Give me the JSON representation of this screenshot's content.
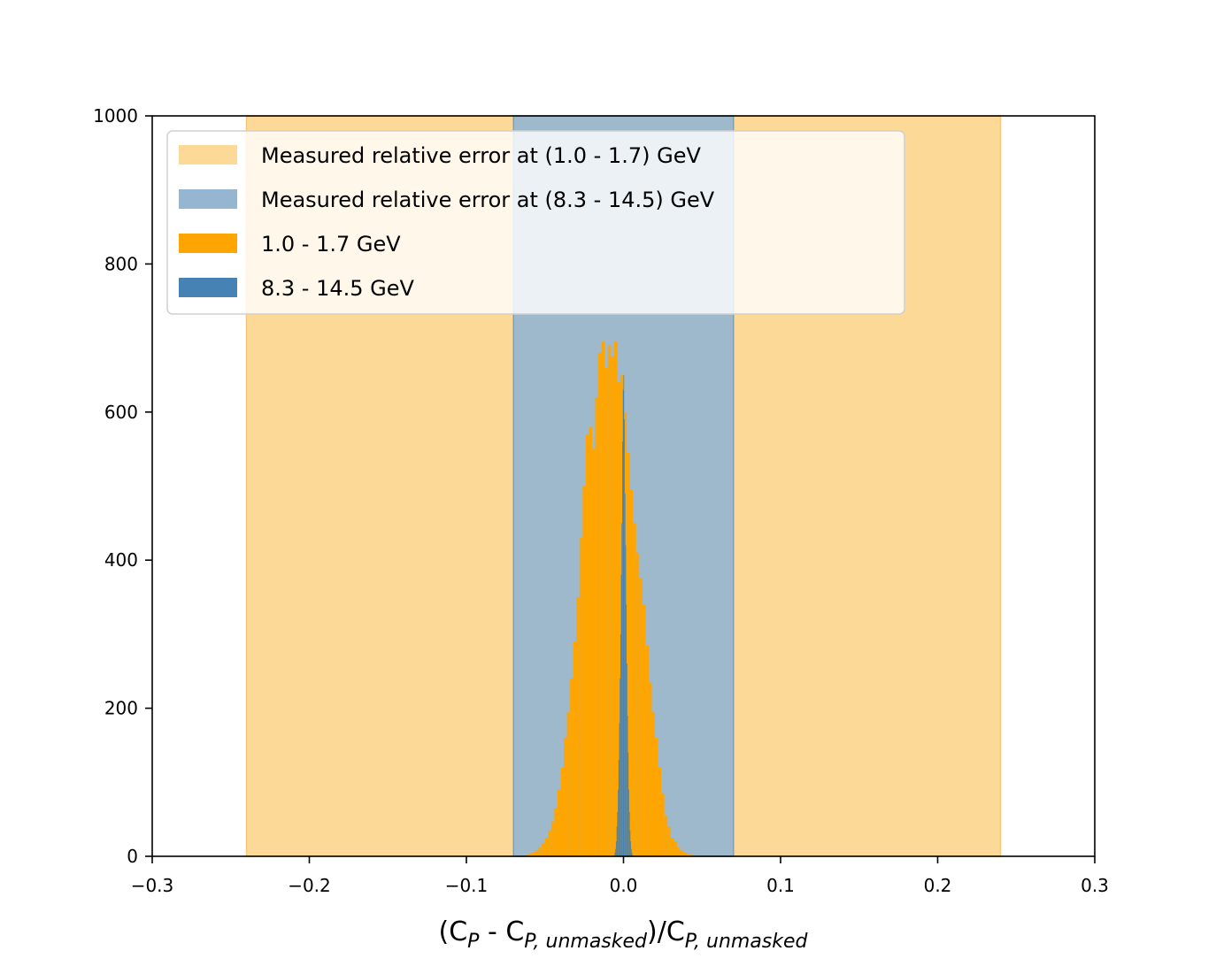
{
  "chart_data": {
    "type": "bar",
    "title": "",
    "xlabel": "(C_P - C_{P,unmasked})/C_{P,unmasked}",
    "xlabel_parts": {
      "open": "(C",
      "sub1": "P",
      "minus": " - C",
      "sub2": "P, unmasked",
      "slash": ")/C",
      "sub3": "P, unmasked"
    },
    "ylabel": "",
    "xlim": [
      -0.3,
      0.3
    ],
    "ylim": [
      0,
      1000
    ],
    "xticks": [
      -0.3,
      -0.2,
      -0.1,
      0.0,
      0.1,
      0.2,
      0.3
    ],
    "xtick_labels": [
      "−0.3",
      "−0.2",
      "−0.1",
      "0.0",
      "0.1",
      "0.2",
      "0.3"
    ],
    "yticks": [
      0,
      200,
      400,
      600,
      800,
      1000
    ],
    "ytick_labels": [
      "0",
      "200",
      "400",
      "600",
      "800",
      "1000"
    ],
    "grid": false,
    "legend_position": "top-left",
    "bands": [
      {
        "name": "Measured relative error at (1.0 - 1.7) GeV",
        "xmin": -0.24,
        "xmax": 0.24,
        "color": "#fdd998",
        "edge": "#f7c77a"
      },
      {
        "name": "Measured relative error at (8.3 - 14.5) GeV",
        "xmin": -0.07,
        "xmax": 0.07,
        "color": "#95b5d1",
        "edge": "#7f9fb8"
      }
    ],
    "series": [
      {
        "name": "1.0 - 1.7 GeV",
        "color": "#ffa500",
        "bin_width": 0.002,
        "x": [
          -0.061,
          -0.059,
          -0.057,
          -0.055,
          -0.053,
          -0.051,
          -0.049,
          -0.047,
          -0.045,
          -0.043,
          -0.041,
          -0.039,
          -0.037,
          -0.035,
          -0.033,
          -0.031,
          -0.029,
          -0.027,
          -0.025,
          -0.023,
          -0.021,
          -0.019,
          -0.017,
          -0.015,
          -0.013,
          -0.011,
          -0.009,
          -0.007,
          -0.005,
          -0.003,
          -0.001,
          0.001,
          0.003,
          0.005,
          0.007,
          0.009,
          0.011,
          0.013,
          0.015,
          0.017,
          0.019,
          0.021,
          0.023,
          0.025,
          0.027,
          0.029,
          0.031,
          0.033,
          0.035,
          0.037,
          0.039,
          0.041,
          0.043,
          0.045,
          0.047
        ],
        "values": [
          2,
          4,
          6,
          8,
          12,
          18,
          25,
          35,
          47,
          65,
          90,
          120,
          160,
          195,
          240,
          290,
          350,
          430,
          500,
          570,
          580,
          550,
          620,
          680,
          695,
          660,
          690,
          675,
          695,
          640,
          650,
          600,
          545,
          495,
          450,
          410,
          375,
          340,
          285,
          235,
          195,
          160,
          120,
          85,
          55,
          40,
          25,
          20,
          12,
          8,
          5,
          3,
          2,
          1,
          1
        ]
      },
      {
        "name": "8.3 - 14.5 GeV",
        "color": "#4682b4",
        "bin_width": 0.0004,
        "x": [
          -0.0054,
          -0.005,
          -0.0046,
          -0.0042,
          -0.0038,
          -0.0034,
          -0.003,
          -0.0026,
          -0.0022,
          -0.0018,
          -0.0014,
          -0.001,
          -0.0006,
          -0.0002,
          0.0002,
          0.0006,
          0.001,
          0.0014,
          0.0018,
          0.0022,
          0.0026,
          0.003,
          0.0034,
          0.0038,
          0.0042,
          0.0046,
          0.005,
          0.0054
        ],
        "values": [
          5,
          10,
          20,
          40,
          60,
          90,
          130,
          180,
          240,
          300,
          380,
          450,
          560,
          630,
          650,
          590,
          490,
          420,
          340,
          260,
          190,
          140,
          90,
          60,
          35,
          20,
          10,
          5
        ]
      }
    ],
    "legend_entries": [
      {
        "label": "Measured relative error at (1.0 - 1.7) GeV",
        "color": "#fdd998"
      },
      {
        "label": "Measured relative error at (8.3 - 14.5) GeV",
        "color": "#95b5d1"
      },
      {
        "label": "1.0 - 1.7 GeV",
        "color": "#ffa500"
      },
      {
        "label": "8.3 - 14.5 GeV",
        "color": "#4682b4"
      }
    ]
  }
}
